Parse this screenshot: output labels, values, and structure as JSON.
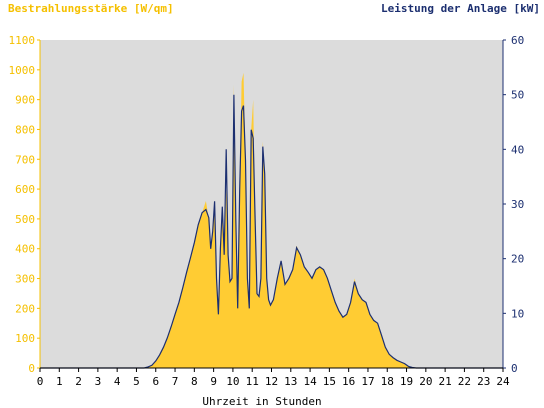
{
  "chart_data": {
    "type": "area",
    "ylabel_left": "Bestrahlungsstärke [W/qm]",
    "ylabel_right": "Leistung der Anlage [kW]",
    "xlabel": "Uhrzeit in Stunden",
    "xlim": [
      0,
      24
    ],
    "ylim_left": [
      0,
      1100
    ],
    "ylim_right": [
      0,
      60
    ],
    "x_ticks": [
      "0",
      "1",
      "2",
      "3",
      "4",
      "5",
      "6",
      "7",
      "8",
      "9",
      "10",
      "11",
      "12",
      "13",
      "14",
      "15",
      "16",
      "17",
      "18",
      "19",
      "20",
      "21",
      "22",
      "23",
      "24"
    ],
    "y_ticks_left": [
      "0",
      "100",
      "200",
      "300",
      "400",
      "500",
      "600",
      "700",
      "800",
      "900",
      "1000",
      "1100"
    ],
    "y_ticks_right": [
      "0",
      "10",
      "20",
      "30",
      "40",
      "50",
      "60"
    ],
    "grid": false,
    "colors": {
      "plot_background": "#dcdcdc",
      "irradiance_fill": "#ffcc33",
      "power_line": "#1c2f70",
      "left_axis_text": "#f5c000",
      "right_axis_text": "#1c2f70"
    },
    "series": [
      {
        "axis": "left",
        "style": "area",
        "x": [
          0,
          5.4,
          5.6,
          5.8,
          6.0,
          6.2,
          6.4,
          6.6,
          6.8,
          7.0,
          7.2,
          7.4,
          7.6,
          7.8,
          8.0,
          8.2,
          8.4,
          8.6,
          8.75,
          8.85,
          8.95,
          9.05,
          9.15,
          9.25,
          9.35,
          9.45,
          9.55,
          9.65,
          9.75,
          9.85,
          9.95,
          10.05,
          10.15,
          10.25,
          10.35,
          10.45,
          10.55,
          10.65,
          10.75,
          10.85,
          10.95,
          11.05,
          11.15,
          11.25,
          11.35,
          11.45,
          11.55,
          11.65,
          11.75,
          11.85,
          11.95,
          12.1,
          12.3,
          12.5,
          12.7,
          12.9,
          13.1,
          13.3,
          13.5,
          13.7,
          13.9,
          14.1,
          14.3,
          14.5,
          14.7,
          14.9,
          15.1,
          15.3,
          15.5,
          15.7,
          15.9,
          16.1,
          16.3,
          16.5,
          16.7,
          16.9,
          17.1,
          17.3,
          17.5,
          17.7,
          17.9,
          18.1,
          18.3,
          18.5,
          18.7,
          18.9,
          19.1,
          19.3,
          19.5,
          20,
          24
        ],
        "values": [
          0,
          0,
          3,
          10,
          25,
          45,
          70,
          100,
          140,
          180,
          220,
          270,
          320,
          370,
          420,
          480,
          520,
          560,
          500,
          400,
          460,
          560,
          300,
          180,
          400,
          540,
          380,
          600,
          380,
          290,
          300,
          950,
          500,
          200,
          600,
          960,
          990,
          700,
          300,
          200,
          800,
          900,
          500,
          250,
          240,
          300,
          760,
          650,
          300,
          230,
          210,
          230,
          300,
          360,
          280,
          300,
          330,
          410,
          380,
          340,
          320,
          300,
          330,
          340,
          330,
          300,
          260,
          220,
          190,
          170,
          180,
          220,
          300,
          250,
          230,
          220,
          180,
          160,
          150,
          110,
          70,
          45,
          35,
          25,
          20,
          15,
          5,
          2,
          0,
          0,
          0
        ]
      },
      {
        "axis": "right",
        "style": "line",
        "x": [
          0,
          5.4,
          5.6,
          5.8,
          6.0,
          6.2,
          6.4,
          6.6,
          6.8,
          7.0,
          7.2,
          7.4,
          7.6,
          7.8,
          8.0,
          8.2,
          8.4,
          8.6,
          8.75,
          8.85,
          8.95,
          9.05,
          9.15,
          9.25,
          9.35,
          9.45,
          9.55,
          9.65,
          9.75,
          9.85,
          9.95,
          10.05,
          10.15,
          10.25,
          10.35,
          10.45,
          10.55,
          10.65,
          10.75,
          10.85,
          10.95,
          11.05,
          11.15,
          11.25,
          11.35,
          11.45,
          11.55,
          11.65,
          11.75,
          11.85,
          11.95,
          12.1,
          12.3,
          12.5,
          12.7,
          12.9,
          13.1,
          13.3,
          13.5,
          13.7,
          13.9,
          14.1,
          14.3,
          14.5,
          14.7,
          14.9,
          15.1,
          15.3,
          15.5,
          15.7,
          15.9,
          16.1,
          16.3,
          16.5,
          16.7,
          16.9,
          17.1,
          17.3,
          17.5,
          17.7,
          17.9,
          18.1,
          18.3,
          18.5,
          18.7,
          18.9,
          19.1,
          19.3,
          19.5,
          20,
          24
        ],
        "values": [
          0,
          0,
          0.2,
          0.5,
          1.3,
          2.4,
          3.8,
          5.5,
          7.6,
          9.8,
          12,
          14.7,
          17.5,
          20.2,
          22.9,
          26.2,
          28.4,
          29,
          27.5,
          21.8,
          25,
          30.5,
          16.4,
          9.8,
          21.8,
          29.5,
          20.7,
          40,
          20.7,
          15.8,
          16.4,
          50,
          27.3,
          10.9,
          32.7,
          47,
          48,
          38,
          16.4,
          10.9,
          43.6,
          42,
          27.3,
          13.6,
          13.1,
          16.4,
          40.5,
          35.5,
          16.4,
          12.5,
          11.5,
          12.5,
          16.4,
          19.6,
          15.3,
          16.4,
          18,
          22,
          20.7,
          18.5,
          17.5,
          16.4,
          18,
          18.5,
          18,
          16.4,
          14.2,
          12,
          10.4,
          9.3,
          9.8,
          12,
          15.8,
          13.6,
          12.5,
          12,
          9.8,
          8.7,
          8.2,
          6,
          3.8,
          2.5,
          1.9,
          1.4,
          1.1,
          0.8,
          0.3,
          0.1,
          0,
          0,
          0
        ]
      }
    ]
  }
}
